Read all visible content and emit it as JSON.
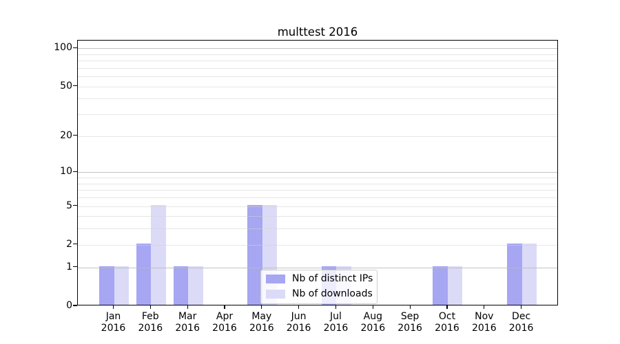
{
  "figure": {
    "background": "#ffffff"
  },
  "chart_data": {
    "type": "bar",
    "title": "multtest 2016",
    "categories": [
      "Jan 2016",
      "Feb 2016",
      "Mar 2016",
      "Apr 2016",
      "May 2016",
      "Jun 2016",
      "Jul 2016",
      "Aug 2016",
      "Sep 2016",
      "Oct 2016",
      "Nov 2016",
      "Dec 2016"
    ],
    "x_tick_months": [
      "Jan",
      "Feb",
      "Mar",
      "Apr",
      "May",
      "Jun",
      "Jul",
      "Aug",
      "Sep",
      "Oct",
      "Nov",
      "Dec"
    ],
    "x_tick_year": "2016",
    "series": [
      {
        "name": "Nb of distinct IPs",
        "color": "#a6a6f2",
        "values": [
          1,
          2,
          1,
          0,
          5,
          0,
          1,
          0,
          0,
          1,
          0,
          2
        ]
      },
      {
        "name": "Nb of downloads",
        "color": "#dbdbf7",
        "values": [
          1,
          5,
          1,
          0,
          5,
          0,
          1,
          0,
          0,
          1,
          0,
          2
        ]
      }
    ],
    "y_scale": "log10(value+1)",
    "y_ticks": [
      0,
      1,
      2,
      5,
      10,
      20,
      50,
      100
    ],
    "y_minor_gridlines": [
      2,
      3,
      4,
      5,
      6,
      7,
      8,
      9,
      20,
      30,
      40,
      50,
      60,
      70,
      80,
      90
    ],
    "y_major_gridlines": [
      1,
      10,
      100
    ],
    "ylim": [
      0,
      115
    ],
    "xlabel": "",
    "ylabel": "",
    "grid": "horizontal",
    "legend_position": "inside-bottom-center"
  },
  "colors": {
    "spine": "#000000",
    "grid_minor": "#e4e4e4",
    "grid_major": "#c3c3c3",
    "text": "#000000",
    "legend_border": "#cccccc",
    "legend_background": "rgba(255,255,255,0.8)"
  }
}
